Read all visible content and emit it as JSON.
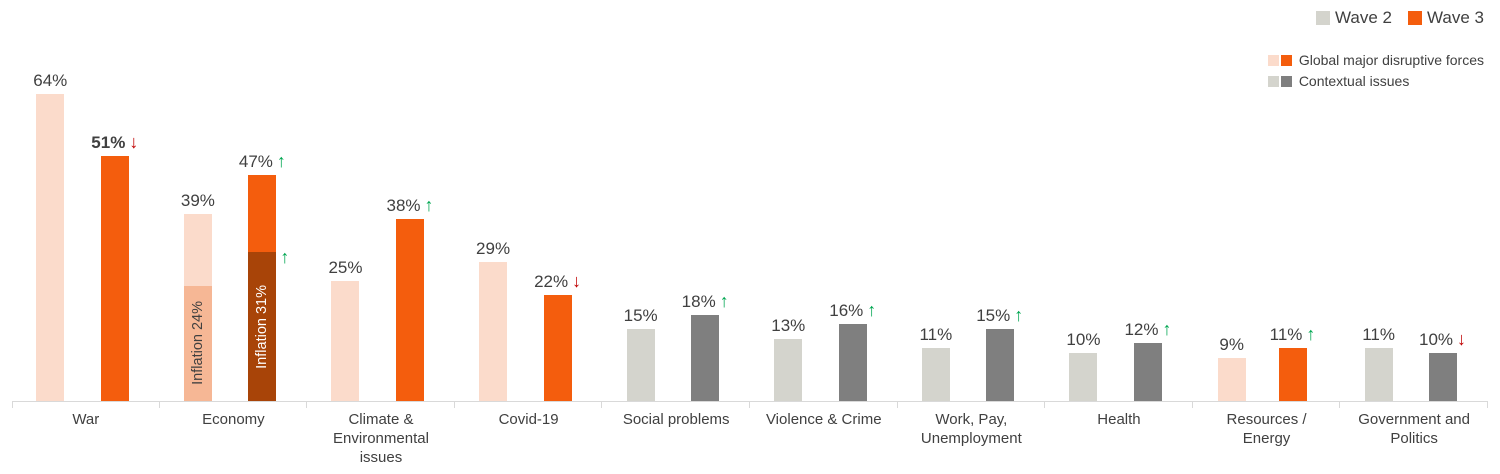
{
  "legend": {
    "items": [
      {
        "label": "Wave 2",
        "color": "#d4d4cd"
      },
      {
        "label": "Wave 3",
        "color": "#f45d0d"
      }
    ]
  },
  "palette_legend": {
    "items": [
      {
        "label": "Global major disruptive forces",
        "colors": [
          "#fbdbcb",
          "#f45d0d"
        ]
      },
      {
        "label": "Contextual issues",
        "colors": [
          "#d4d4cd",
          "#7f7f7f"
        ]
      }
    ]
  },
  "glyphs": {
    "up": "↑",
    "down": "↓"
  },
  "colors": {
    "wave2_disruptive": "#fbdbcb",
    "wave3_disruptive": "#f45d0d",
    "wave2_contextual": "#d4d4cd",
    "wave3_contextual": "#7f7f7f",
    "wave2_segment": "#f6b795",
    "wave3_segment": "#a84408",
    "up": "#00a651",
    "down": "#c00000",
    "axis": "#d9d9d9"
  },
  "chart_data": {
    "type": "bar",
    "title": "",
    "unit": "%",
    "ylim": [
      0,
      70
    ],
    "legend_position": "top-right",
    "series": [
      {
        "name": "Wave 2",
        "values": [
          64,
          39,
          25,
          29,
          15,
          13,
          11,
          10,
          9,
          11
        ]
      },
      {
        "name": "Wave 3",
        "values": [
          51,
          47,
          38,
          22,
          18,
          16,
          15,
          12,
          11,
          10
        ]
      }
    ],
    "categories": [
      {
        "label": "War",
        "palette": "disruptive",
        "wave2": {
          "value": 64,
          "label": "64%"
        },
        "wave3": {
          "value": 51,
          "label": "51%",
          "bold": true,
          "trend": "down"
        }
      },
      {
        "label": "Economy",
        "palette": "disruptive",
        "wave2": {
          "value": 39,
          "label": "39%"
        },
        "wave3": {
          "value": 47,
          "label": "47%",
          "trend": "up"
        },
        "wave2_segment": {
          "value": 24,
          "label": "Inflation 24%"
        },
        "wave3_segment": {
          "value": 31,
          "label": "Inflation 31%",
          "trend": "up"
        }
      },
      {
        "label": "Climate &\nEnvironmental\nissues",
        "palette": "disruptive",
        "wave2": {
          "value": 25,
          "label": "25%"
        },
        "wave3": {
          "value": 38,
          "label": "38%",
          "trend": "up"
        }
      },
      {
        "label": "Covid-19",
        "palette": "disruptive",
        "wave2": {
          "value": 29,
          "label": "29%"
        },
        "wave3": {
          "value": 22,
          "label": "22%",
          "trend": "down"
        }
      },
      {
        "label": "Social problems",
        "palette": "contextual",
        "wave2": {
          "value": 15,
          "label": "15%"
        },
        "wave3": {
          "value": 18,
          "label": "18%",
          "trend": "up"
        }
      },
      {
        "label": "Violence & Crime",
        "palette": "contextual",
        "wave2": {
          "value": 13,
          "label": "13%"
        },
        "wave3": {
          "value": 16,
          "label": "16%",
          "trend": "up"
        }
      },
      {
        "label": "Work, Pay,\nUnemployment",
        "palette": "contextual",
        "wave2": {
          "value": 11,
          "label": "11%"
        },
        "wave3": {
          "value": 15,
          "label": "15%",
          "trend": "up"
        }
      },
      {
        "label": "Health",
        "palette": "contextual",
        "wave2": {
          "value": 10,
          "label": "10%"
        },
        "wave3": {
          "value": 12,
          "label": "12%",
          "trend": "up"
        }
      },
      {
        "label": "Resources /\nEnergy",
        "palette": "disruptive",
        "wave2": {
          "value": 9,
          "label": "9%"
        },
        "wave3": {
          "value": 11,
          "label": "11%",
          "trend": "up"
        }
      },
      {
        "label": "Government and\nPolitics",
        "palette": "contextual",
        "wave2": {
          "value": 11,
          "label": "11%"
        },
        "wave3": {
          "value": 10,
          "label": "10%",
          "trend": "down"
        }
      }
    ]
  }
}
